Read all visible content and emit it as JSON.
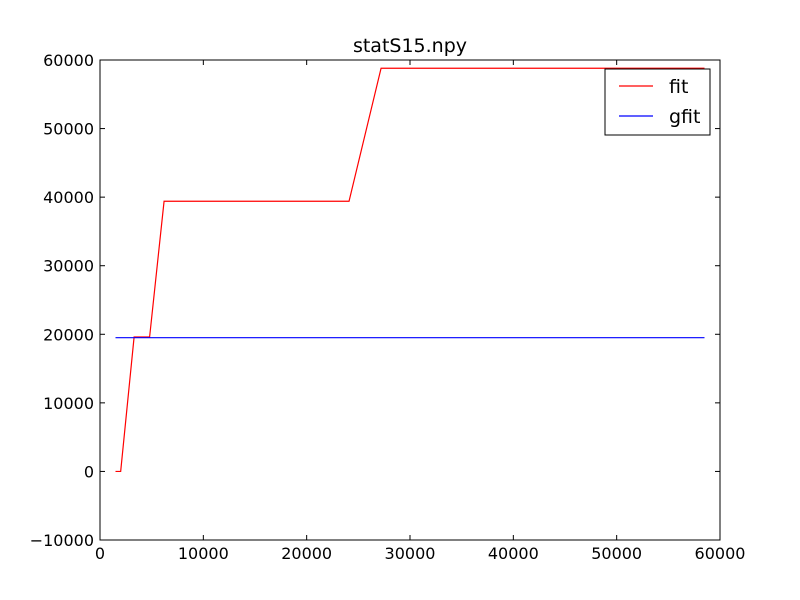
{
  "chart_data": {
    "type": "line",
    "title": "statS15.npy",
    "xlabel": "",
    "ylabel": "",
    "xlim": [
      0,
      60000
    ],
    "ylim": [
      -10000,
      60000
    ],
    "xticks": [
      0,
      10000,
      20000,
      30000,
      40000,
      50000,
      60000
    ],
    "yticks": [
      -10000,
      0,
      10000,
      20000,
      30000,
      40000,
      50000,
      60000
    ],
    "xtick_labels": [
      "0",
      "10000",
      "20000",
      "30000",
      "40000",
      "50000",
      "60000"
    ],
    "ytick_labels": [
      "−10000",
      "0",
      "10000",
      "20000",
      "30000",
      "40000",
      "50000",
      "60000"
    ],
    "grid": false,
    "legend": "top-right",
    "series": [
      {
        "name": "fit",
        "color": "#ff0000",
        "x": [
          1500,
          2000,
          3300,
          4800,
          6200,
          24100,
          27200,
          58500
        ],
        "y": [
          0,
          0,
          19600,
          19600,
          39400,
          39400,
          58800,
          58800
        ]
      },
      {
        "name": "gfit",
        "color": "#0000ff",
        "x": [
          1500,
          58500
        ],
        "y": [
          19500,
          19500
        ]
      }
    ]
  }
}
